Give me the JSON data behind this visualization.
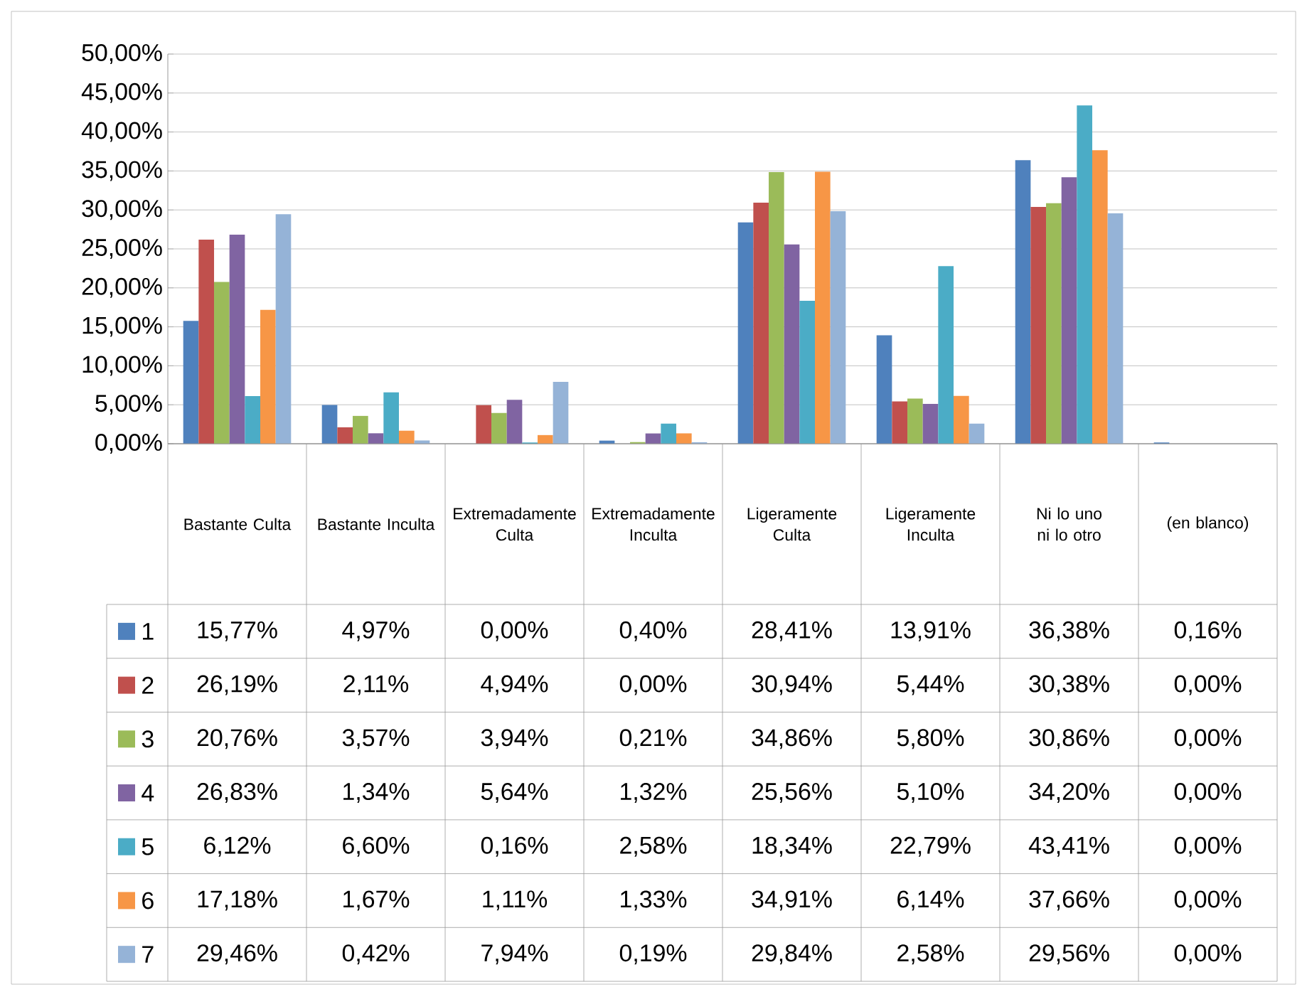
{
  "chart_data": {
    "type": "bar",
    "categories": [
      "Bastante Culta",
      "Bastante Inculta",
      "Extremadamente Culta",
      "Extremadamente Inculta",
      "Ligeramente Culta",
      "Ligeramente Inculta",
      "Ni lo uno ni lo otro",
      "(en blanco)"
    ],
    "series": [
      {
        "name": "1",
        "color": "#4f81bd",
        "values": [
          15.77,
          4.97,
          0.0,
          0.4,
          28.41,
          13.91,
          36.38,
          0.16
        ],
        "value_labels": [
          "15,77%",
          "4,97%",
          "0,00%",
          "0,40%",
          "28,41%",
          "13,91%",
          "36,38%",
          "0,16%"
        ]
      },
      {
        "name": "2",
        "color": "#c0504d",
        "values": [
          26.19,
          2.11,
          4.94,
          0.0,
          30.94,
          5.44,
          30.38,
          0.0
        ],
        "value_labels": [
          "26,19%",
          "2,11%",
          "4,94%",
          "0,00%",
          "30,94%",
          "5,44%",
          "30,38%",
          "0,00%"
        ]
      },
      {
        "name": "3",
        "color": "#9bbb59",
        "values": [
          20.76,
          3.57,
          3.94,
          0.21,
          34.86,
          5.8,
          30.86,
          0.0
        ],
        "value_labels": [
          "20,76%",
          "3,57%",
          "3,94%",
          "0,21%",
          "34,86%",
          "5,80%",
          "30,86%",
          "0,00%"
        ]
      },
      {
        "name": "4",
        "color": "#8064a2",
        "values": [
          26.83,
          1.34,
          5.64,
          1.32,
          25.56,
          5.1,
          34.2,
          0.0
        ],
        "value_labels": [
          "26,83%",
          "1,34%",
          "5,64%",
          "1,32%",
          "25,56%",
          "5,10%",
          "34,20%",
          "0,00%"
        ]
      },
      {
        "name": "5",
        "color": "#4bacc6",
        "values": [
          6.12,
          6.6,
          0.16,
          2.58,
          18.34,
          22.79,
          43.41,
          0.0
        ],
        "value_labels": [
          "6,12%",
          "6,60%",
          "0,16%",
          "2,58%",
          "18,34%",
          "22,79%",
          "43,41%",
          "0,00%"
        ]
      },
      {
        "name": "6",
        "color": "#f79646",
        "values": [
          17.18,
          1.67,
          1.11,
          1.33,
          34.91,
          6.14,
          37.66,
          0.0
        ],
        "value_labels": [
          "17,18%",
          "1,67%",
          "1,11%",
          "1,33%",
          "34,91%",
          "6,14%",
          "37,66%",
          "0,00%"
        ]
      },
      {
        "name": "7",
        "color": "#95b3d7",
        "values": [
          29.46,
          0.42,
          7.94,
          0.19,
          29.84,
          2.58,
          29.56,
          0.0
        ],
        "value_labels": [
          "29,46%",
          "0,42%",
          "7,94%",
          "0,19%",
          "29,84%",
          "2,58%",
          "29,56%",
          "0,00%"
        ]
      }
    ],
    "ylim": [
      0,
      50
    ],
    "yticks": [
      {
        "value": 0,
        "label": "0,00%"
      },
      {
        "value": 5,
        "label": "5,00%"
      },
      {
        "value": 10,
        "label": "10,00%"
      },
      {
        "value": 15,
        "label": "15,00%"
      },
      {
        "value": 20,
        "label": "20,00%"
      },
      {
        "value": 25,
        "label": "25,00%"
      },
      {
        "value": 30,
        "label": "30,00%"
      },
      {
        "value": 35,
        "label": "35,00%"
      },
      {
        "value": 40,
        "label": "40,00%"
      },
      {
        "value": 45,
        "label": "45,00%"
      },
      {
        "value": 50,
        "label": "50,00%"
      }
    ],
    "grid": "y",
    "legend": "bottom"
  }
}
